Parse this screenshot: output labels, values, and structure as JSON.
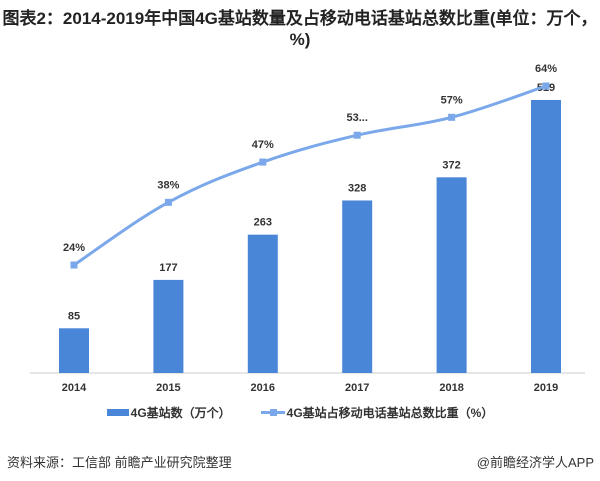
{
  "title": "图表2：2014-2019年中国4G基站数量及占移动电话基站总数比重(单位：万个，%)",
  "chart_data": {
    "type": "bar+line",
    "categories": [
      "2014",
      "2015",
      "2016",
      "2017",
      "2018",
      "2019"
    ],
    "series": [
      {
        "name": "4G基站数（万个）",
        "type": "bar",
        "values": [
          85,
          177,
          263,
          328,
          372,
          519
        ],
        "labels": [
          "85",
          "177",
          "263",
          "328",
          "372",
          "519"
        ],
        "color": "#4a86d8"
      },
      {
        "name": "4G基站占移动电话基站总数比重（%）",
        "type": "line",
        "values": [
          24,
          38,
          47,
          53,
          57,
          64
        ],
        "labels": [
          "24%",
          "38%",
          "47%",
          "53...",
          "57%",
          "64%"
        ],
        "color": "#7aa8ea"
      }
    ],
    "legend": "bottom",
    "grid": false
  },
  "source": "资料来源：工信部 前瞻产业研究院整理",
  "brand": "@前瞻经济学人APP"
}
